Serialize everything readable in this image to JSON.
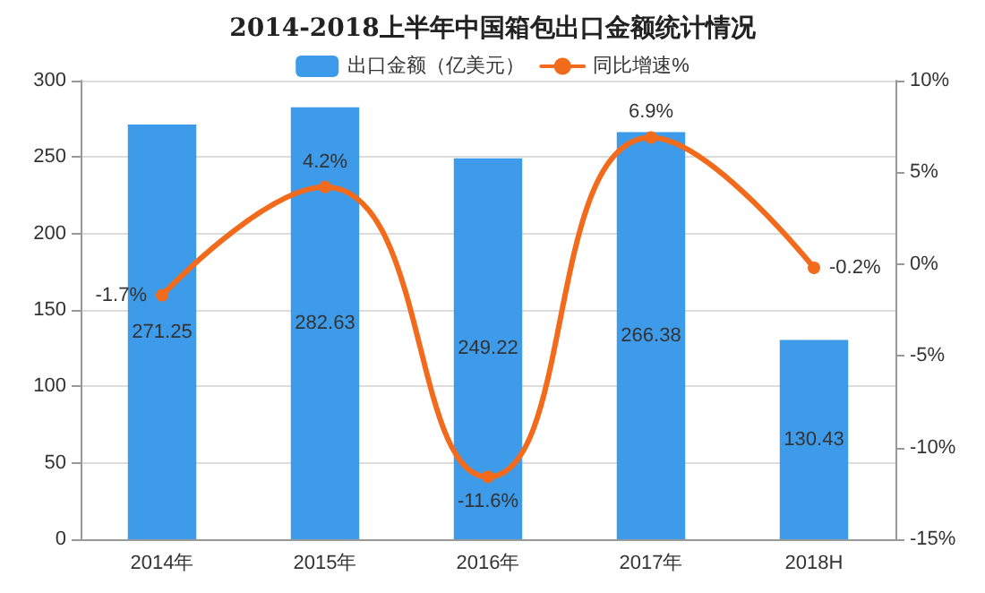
{
  "chart_data": {
    "type": "bar",
    "title": "2014-2018上半年中国箱包出口金额统计情况",
    "categories": [
      "2014年",
      "2015年",
      "2016年",
      "2017年",
      "2018H"
    ],
    "series": [
      {
        "name": "出口金额（亿美元）",
        "color": "#3d9be9",
        "values": [
          271.25,
          282.63,
          249.22,
          266.38,
          130.43
        ],
        "value_labels": [
          "271.25",
          "282.63",
          "249.22",
          "266.38",
          "130.43"
        ]
      },
      {
        "name": "同比增速%",
        "type": "line",
        "axis": "y2",
        "color": "#f26b1d",
        "values": [
          -1.7,
          4.2,
          -11.6,
          6.9,
          -0.2
        ],
        "value_labels": [
          "-1.7%",
          "4.2%",
          "-11.6%",
          "6.9%",
          "-0.2%"
        ]
      }
    ],
    "ylim": [
      0,
      300
    ],
    "yticks": [
      0,
      50,
      100,
      150,
      200,
      250,
      300
    ],
    "y2lim": [
      -15,
      10
    ],
    "y2ticks": [
      {
        "value": -15,
        "label": "-15%"
      },
      {
        "value": -10,
        "label": "-10%"
      },
      {
        "value": -5,
        "label": "-5%"
      },
      {
        "value": 0,
        "label": "0%"
      },
      {
        "value": 5,
        "label": "5%"
      },
      {
        "value": 10,
        "label": "10%"
      }
    ],
    "grid": "y",
    "legend": "top",
    "marker": "circle",
    "line_style": "solid"
  }
}
